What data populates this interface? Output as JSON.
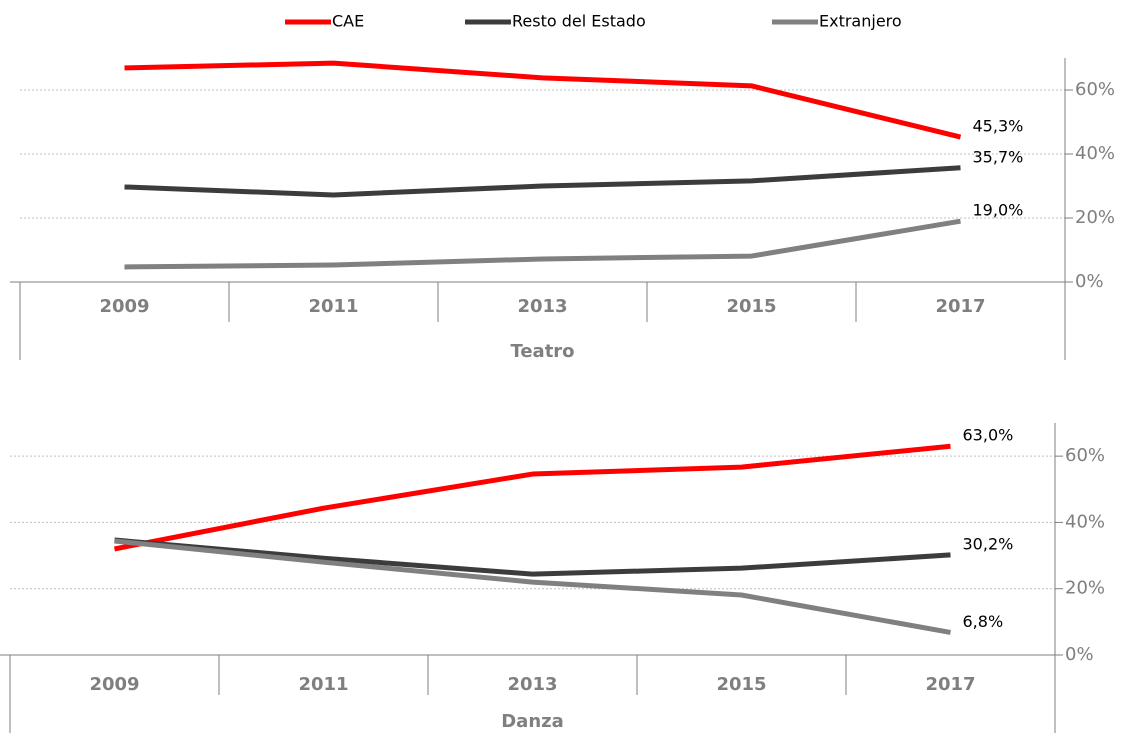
{
  "chart_data": [
    {
      "type": "line",
      "group_label": "Teatro",
      "categories": [
        "2009",
        "2011",
        "2013",
        "2015",
        "2017"
      ],
      "ylim": [
        0,
        70
      ],
      "yticks": [
        {
          "value": 0,
          "label": "0%"
        },
        {
          "value": 20,
          "label": "20%"
        },
        {
          "value": 40,
          "label": "40%"
        },
        {
          "value": 60,
          "label": "60%"
        }
      ],
      "grid": true,
      "series": [
        {
          "name": "CAE",
          "color": "#ff0000",
          "values": [
            66.9,
            68.4,
            63.8,
            61.3,
            45.3
          ],
          "value_labels": [
            null,
            null,
            null,
            null,
            "45,3%"
          ]
        },
        {
          "name": "Resto del Estado",
          "color": "#3c3c3c",
          "values": [
            29.7,
            27.2,
            30.0,
            31.6,
            35.7
          ],
          "value_labels": [
            null,
            null,
            null,
            null,
            "35,7%"
          ]
        },
        {
          "name": "Extranjero",
          "color": "#808080",
          "values": [
            4.7,
            5.3,
            7.2,
            8.1,
            19.0
          ],
          "value_labels": [
            null,
            null,
            null,
            null,
            "19,0%"
          ]
        }
      ]
    },
    {
      "type": "line",
      "group_label": "Danza",
      "categories": [
        "2009",
        "2011",
        "2013",
        "2015",
        "2017"
      ],
      "ylim": [
        0,
        70
      ],
      "yticks": [
        {
          "value": 0,
          "label": "0%"
        },
        {
          "value": 20,
          "label": "20%"
        },
        {
          "value": 40,
          "label": "40%"
        },
        {
          "value": 60,
          "label": "60%"
        }
      ],
      "grid": true,
      "series": [
        {
          "name": "CAE",
          "color": "#ff0000",
          "values": [
            32.0,
            44.3,
            54.6,
            56.7,
            63.0
          ],
          "value_labels": [
            null,
            null,
            null,
            null,
            "63,0%"
          ]
        },
        {
          "name": "Resto del Estado",
          "color": "#3c3c3c",
          "values": [
            34.7,
            29.2,
            24.4,
            26.2,
            30.2
          ],
          "value_labels": [
            null,
            null,
            null,
            null,
            "30,2%"
          ]
        },
        {
          "name": "Extranjero",
          "color": "#808080",
          "values": [
            34.4,
            28.0,
            22.0,
            18.1,
            6.8
          ],
          "value_labels": [
            null,
            null,
            null,
            null,
            "6,8%"
          ]
        }
      ]
    }
  ]
}
